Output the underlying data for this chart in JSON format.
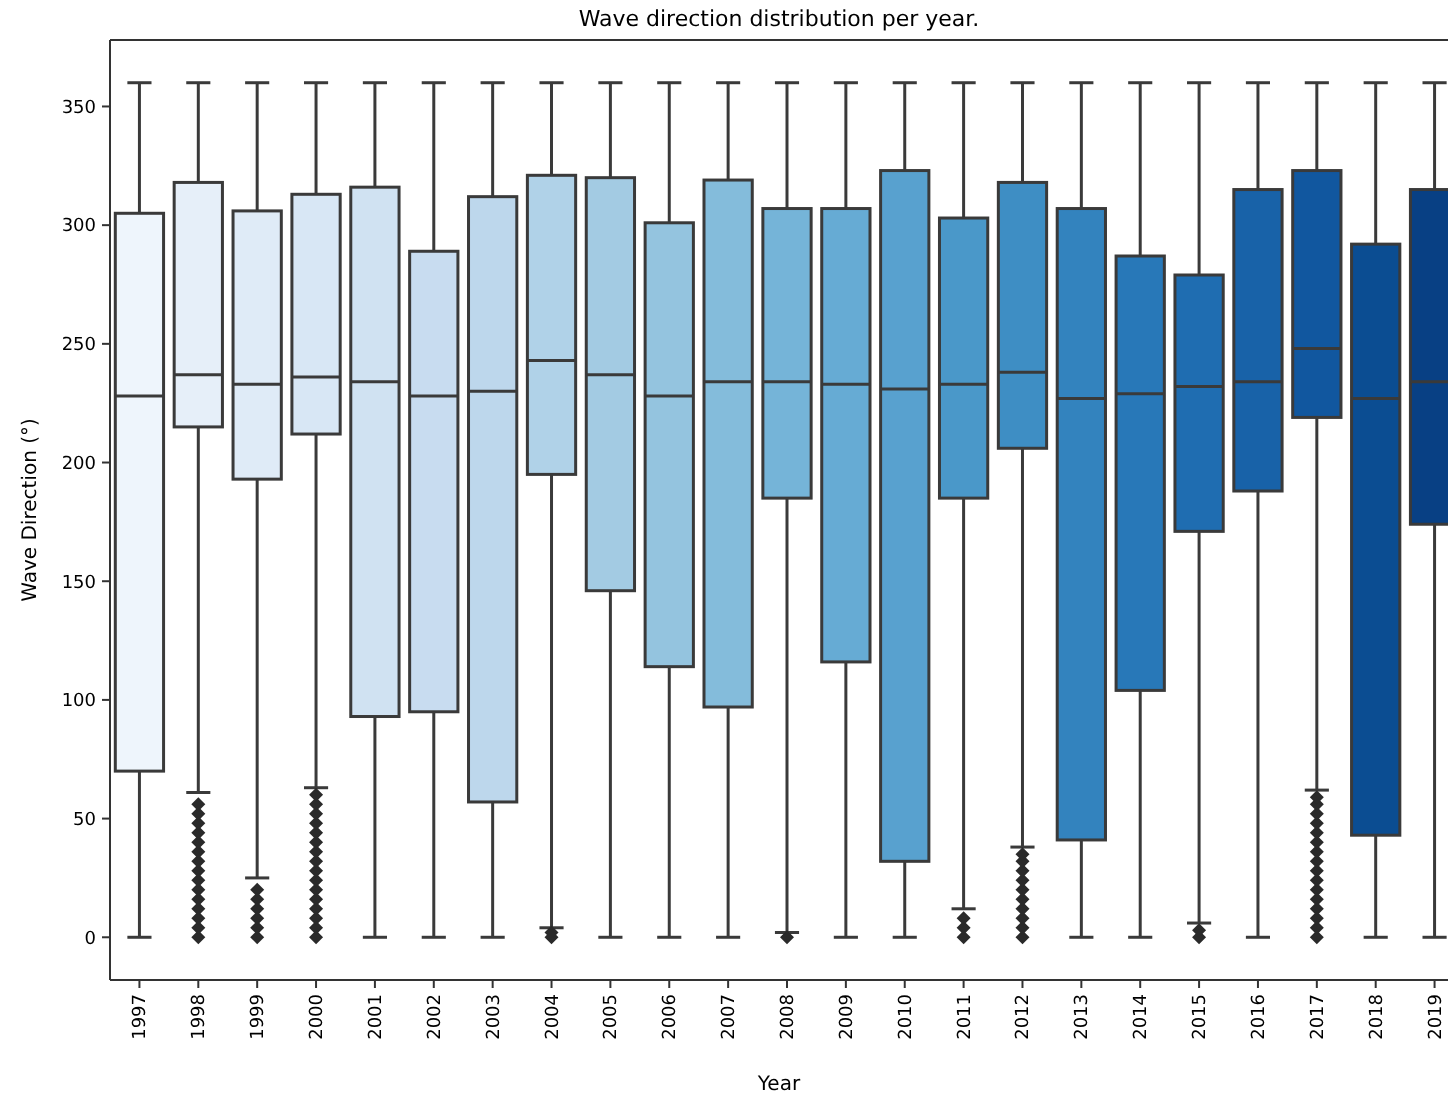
{
  "chart_data": {
    "type": "box",
    "title": "Wave direction distribution per year.",
    "xlabel": "Year",
    "ylabel": "Wave Direction (°)",
    "categories": [
      "1997",
      "1998",
      "1999",
      "2000",
      "2001",
      "2002",
      "2003",
      "2004",
      "2005",
      "2006",
      "2007",
      "2008",
      "2009",
      "2010",
      "2011",
      "2012",
      "2013",
      "2014",
      "2015",
      "2016",
      "2017",
      "2018",
      "2019"
    ],
    "colors": [
      "#eef5fc",
      "#e6eff9",
      "#dfebf7",
      "#d8e7f5",
      "#d0e2f2",
      "#c8dcf0",
      "#bdd7ec",
      "#b0d2e8",
      "#a3cbe3",
      "#94c4df",
      "#84bcdb",
      "#75b4d8",
      "#66abd4",
      "#58a1cf",
      "#4a98c9",
      "#3e8ec4",
      "#3383be",
      "#2878b8",
      "#1f6db1",
      "#1862a8",
      "#11579f",
      "#0b4d92",
      "#084084"
    ],
    "boxes": [
      {
        "low": 0,
        "q1": 70,
        "median": 228,
        "q3": 305,
        "high": 360
      },
      {
        "low": 61,
        "q1": 215,
        "median": 237,
        "q3": 318,
        "high": 360,
        "outliers": [
          0,
          4,
          8,
          12,
          16,
          20,
          24,
          28,
          32,
          36,
          40,
          44,
          48,
          52,
          56
        ]
      },
      {
        "low": 25,
        "q1": 193,
        "median": 233,
        "q3": 306,
        "high": 360,
        "outliers": [
          0,
          4,
          8,
          12,
          16,
          20
        ]
      },
      {
        "low": 63,
        "q1": 212,
        "median": 236,
        "q3": 313,
        "high": 360,
        "outliers": [
          0,
          4,
          8,
          12,
          16,
          20,
          24,
          28,
          32,
          36,
          40,
          44,
          48,
          52,
          56,
          60
        ]
      },
      {
        "low": 0,
        "q1": 93,
        "median": 234,
        "q3": 316,
        "high": 360
      },
      {
        "low": 0,
        "q1": 95,
        "median": 228,
        "q3": 289,
        "high": 360
      },
      {
        "low": 0,
        "q1": 57,
        "median": 230,
        "q3": 312,
        "high": 360
      },
      {
        "low": 4,
        "q1": 195,
        "median": 243,
        "q3": 321,
        "high": 360,
        "outliers": [
          0,
          2
        ]
      },
      {
        "low": 0,
        "q1": 146,
        "median": 237,
        "q3": 320,
        "high": 360
      },
      {
        "low": 0,
        "q1": 114,
        "median": 228,
        "q3": 301,
        "high": 360
      },
      {
        "low": 0,
        "q1": 97,
        "median": 234,
        "q3": 319,
        "high": 360
      },
      {
        "low": 2,
        "q1": 185,
        "median": 234,
        "q3": 307,
        "high": 360,
        "outliers": [
          0
        ]
      },
      {
        "low": 0,
        "q1": 116,
        "median": 233,
        "q3": 307,
        "high": 360
      },
      {
        "low": 0,
        "q1": 32,
        "median": 231,
        "q3": 323,
        "high": 360
      },
      {
        "low": 12,
        "q1": 185,
        "median": 233,
        "q3": 303,
        "high": 360,
        "outliers": [
          0,
          4,
          8
        ]
      },
      {
        "low": 38,
        "q1": 206,
        "median": 238,
        "q3": 318,
        "high": 360,
        "outliers": [
          0,
          4,
          8,
          12,
          16,
          20,
          24,
          28,
          32,
          35
        ]
      },
      {
        "low": 0,
        "q1": 41,
        "median": 227,
        "q3": 307,
        "high": 360
      },
      {
        "low": 0,
        "q1": 104,
        "median": 229,
        "q3": 287,
        "high": 360
      },
      {
        "low": 6,
        "q1": 171,
        "median": 232,
        "q3": 279,
        "high": 360,
        "outliers": [
          0,
          3
        ]
      },
      {
        "low": 0,
        "q1": 188,
        "median": 234,
        "q3": 315,
        "high": 360
      },
      {
        "low": 62,
        "q1": 219,
        "median": 248,
        "q3": 323,
        "high": 360,
        "outliers": [
          0,
          4,
          8,
          12,
          16,
          20,
          24,
          28,
          32,
          36,
          40,
          44,
          48,
          52,
          56,
          59
        ]
      },
      {
        "low": 0,
        "q1": 43,
        "median": 227,
        "q3": 292,
        "high": 360
      },
      {
        "low": 0,
        "q1": 174,
        "median": 234,
        "q3": 315,
        "high": 360
      }
    ],
    "ylim": [
      -18,
      378
    ],
    "yticks": [
      0,
      50,
      100,
      150,
      200,
      250,
      300,
      350
    ]
  }
}
